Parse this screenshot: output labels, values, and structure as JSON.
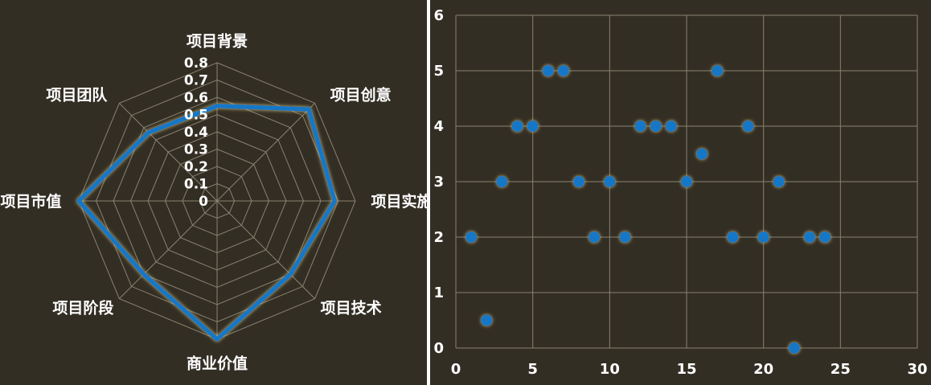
{
  "colors": {
    "background": "#332e24",
    "grid": "#8a8170",
    "series": "#1577c6",
    "glow": "#d9c77a",
    "text": "#ffffff"
  },
  "chart_data": [
    {
      "type": "radar",
      "title": "",
      "axes": [
        "项目背景",
        "项目创意",
        "项目实施",
        "项目技术",
        "商业价值",
        "项目阶段",
        "项目市值",
        "项目团队"
      ],
      "values": [
        0.55,
        0.75,
        0.68,
        0.6,
        0.8,
        0.6,
        0.8,
        0.56
      ],
      "rlim": [
        0,
        0.8
      ],
      "ticks": [
        "0",
        "0.1",
        "0.2",
        "0.3",
        "0.4",
        "0.5",
        "0.6",
        "0.7",
        "0.8"
      ],
      "tick_values": [
        0,
        0.1,
        0.2,
        0.3,
        0.4,
        0.5,
        0.6,
        0.7,
        0.8
      ],
      "grid": true
    },
    {
      "type": "scatter",
      "title": "",
      "xlabel": "",
      "ylabel": "",
      "xlim": [
        0,
        30
      ],
      "ylim": [
        0,
        6
      ],
      "xticks": [
        0,
        5,
        10,
        15,
        20,
        25,
        30
      ],
      "yticks": [
        0,
        1,
        2,
        3,
        4,
        5,
        6
      ],
      "grid": true,
      "points": [
        {
          "x": 1,
          "y": 2
        },
        {
          "x": 2,
          "y": 0.5
        },
        {
          "x": 3,
          "y": 3
        },
        {
          "x": 4,
          "y": 4
        },
        {
          "x": 5,
          "y": 4
        },
        {
          "x": 6,
          "y": 5
        },
        {
          "x": 7,
          "y": 5
        },
        {
          "x": 8,
          "y": 3
        },
        {
          "x": 9,
          "y": 2
        },
        {
          "x": 10,
          "y": 3
        },
        {
          "x": 11,
          "y": 2
        },
        {
          "x": 12,
          "y": 4
        },
        {
          "x": 13,
          "y": 4
        },
        {
          "x": 14,
          "y": 4
        },
        {
          "x": 15,
          "y": 3
        },
        {
          "x": 16,
          "y": 3.5
        },
        {
          "x": 17,
          "y": 5
        },
        {
          "x": 18,
          "y": 2
        },
        {
          "x": 19,
          "y": 4
        },
        {
          "x": 20,
          "y": 2
        },
        {
          "x": 21,
          "y": 3
        },
        {
          "x": 22,
          "y": 0
        },
        {
          "x": 23,
          "y": 2
        },
        {
          "x": 24,
          "y": 2
        }
      ]
    }
  ]
}
